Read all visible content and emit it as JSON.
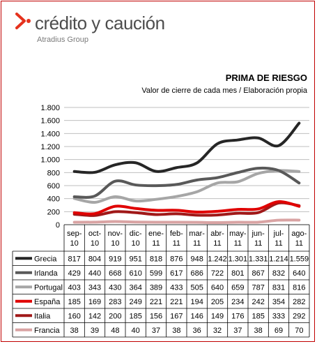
{
  "logo": {
    "brand": "crédito y caución",
    "group": "Atradius Group"
  },
  "header": {
    "title": "PRIMA DE RIESGO",
    "subtitle": "Valor de cierre de cada mes / Elaboración propia"
  },
  "chart_data": {
    "type": "line",
    "title": "PRIMA DE RIESGO",
    "subtitle": "Valor de cierre de cada mes / Elaboración propia",
    "categories": [
      [
        "sep-",
        "10"
      ],
      [
        "oct-",
        "10"
      ],
      [
        "nov-",
        "10"
      ],
      [
        "dic-",
        "10"
      ],
      [
        "ene-",
        "11"
      ],
      [
        "feb-",
        "11"
      ],
      [
        "mar-",
        "11"
      ],
      [
        "abr-",
        "11"
      ],
      [
        "may-",
        "11"
      ],
      [
        "jun-",
        "11"
      ],
      [
        "jul-",
        "11"
      ],
      [
        "ago-",
        "11"
      ]
    ],
    "ylim": [
      0,
      1800
    ],
    "yticks": [
      0,
      200,
      400,
      600,
      800,
      1000,
      1200,
      1400,
      1600,
      1800
    ],
    "ytick_labels": [
      "0",
      "200",
      "400",
      "600",
      "800",
      "1.000",
      "1.200",
      "1.400",
      "1.600",
      "1.800"
    ],
    "grid": true,
    "legend": "data-table-below",
    "series": [
      {
        "name": "Grecia",
        "color": "#262626",
        "values": [
          817,
          804,
          919,
          951,
          818,
          876,
          948,
          1242,
          1301,
          1331,
          1214,
          1559
        ],
        "labels": [
          "817",
          "804",
          "919",
          "951",
          "818",
          "876",
          "948",
          "1.242",
          "1.301",
          "1.331",
          "1.214",
          "1.559"
        ]
      },
      {
        "name": "Irlanda",
        "color": "#595959",
        "values": [
          429,
          440,
          668,
          610,
          599,
          617,
          686,
          722,
          801,
          867,
          832,
          640
        ],
        "labels": [
          "429",
          "440",
          "668",
          "610",
          "599",
          "617",
          "686",
          "722",
          "801",
          "867",
          "832",
          "640"
        ]
      },
      {
        "name": "Portugal",
        "color": "#a6a6a6",
        "values": [
          403,
          343,
          430,
          364,
          389,
          433,
          505,
          640,
          659,
          787,
          831,
          816
        ],
        "labels": [
          "403",
          "343",
          "430",
          "364",
          "389",
          "433",
          "505",
          "640",
          "659",
          "787",
          "831",
          "816"
        ]
      },
      {
        "name": "España",
        "color": "#e00000",
        "values": [
          185,
          169,
          283,
          249,
          221,
          221,
          194,
          205,
          234,
          242,
          354,
          282
        ],
        "labels": [
          "185",
          "169",
          "283",
          "249",
          "221",
          "221",
          "194",
          "205",
          "234",
          "242",
          "354",
          "282"
        ]
      },
      {
        "name": "Italia",
        "color": "#a01818",
        "values": [
          160,
          142,
          200,
          185,
          156,
          167,
          146,
          149,
          176,
          185,
          333,
          292
        ],
        "labels": [
          "160",
          "142",
          "200",
          "185",
          "156",
          "167",
          "146",
          "149",
          "176",
          "185",
          "333",
          "292"
        ]
      },
      {
        "name": "Francia",
        "color": "#d9a3a3",
        "values": [
          38,
          39,
          48,
          40,
          37,
          38,
          36,
          32,
          37,
          38,
          69,
          70
        ],
        "labels": [
          "38",
          "39",
          "48",
          "40",
          "37",
          "38",
          "36",
          "32",
          "37",
          "38",
          "69",
          "70"
        ]
      }
    ]
  }
}
